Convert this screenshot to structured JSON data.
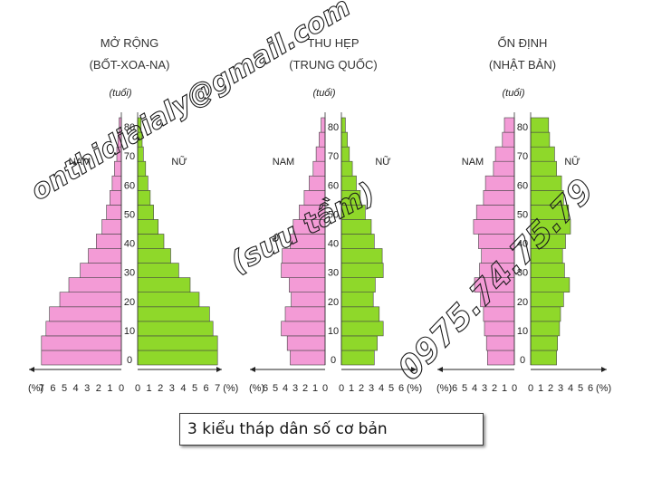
{
  "colors": {
    "male": "#f39bd6",
    "female": "#8fd82a",
    "edge": "#444444"
  },
  "chart_data": [
    {
      "type": "bar",
      "title": "MỞ RỘNG",
      "subtitle": "(BỐT-XOA-NA)",
      "age_unit": "(tuổi)",
      "male_label": "NAM",
      "female_label": "NỮ",
      "percent_label": "(%)",
      "age_ticks": [
        "0",
        "10",
        "20",
        "30",
        "40",
        "50",
        "60",
        "70",
        "80"
      ],
      "x_ticks_left": [
        "7",
        "6",
        "5",
        "4",
        "3",
        "2",
        "1",
        "0"
      ],
      "x_ticks_right": [
        "0",
        "1",
        "2",
        "3",
        "4",
        "5",
        "6",
        "7"
      ],
      "xlim": [
        0,
        7
      ],
      "male": [
        7.0,
        7.0,
        6.6,
        6.3,
        5.4,
        4.6,
        3.6,
        2.9,
        2.2,
        1.7,
        1.3,
        1.0,
        0.8,
        0.6,
        0.4,
        0.3,
        0.2
      ],
      "female": [
        7.0,
        7.0,
        6.6,
        6.3,
        5.4,
        4.6,
        3.6,
        2.9,
        2.3,
        1.8,
        1.4,
        1.1,
        0.9,
        0.7,
        0.5,
        0.4,
        0.3
      ]
    },
    {
      "type": "bar",
      "title": "THU HẸP",
      "subtitle": "(TRUNG QUỐC)",
      "age_unit": "(tuổi)",
      "male_label": "NAM",
      "female_label": "NỮ",
      "percent_label": "(%)",
      "age_ticks": [
        "0",
        "10",
        "20",
        "30",
        "40",
        "50",
        "60",
        "70",
        "80"
      ],
      "x_ticks_left": [
        "6",
        "5",
        "4",
        "3",
        "2",
        "1",
        "0"
      ],
      "x_ticks_right": [
        "0",
        "1",
        "2",
        "3",
        "4",
        "5",
        "6"
      ],
      "xlim": [
        0,
        6
      ],
      "male": [
        3.5,
        3.8,
        4.4,
        4.0,
        3.4,
        3.6,
        4.4,
        4.3,
        3.5,
        3.2,
        2.6,
        2.1,
        1.6,
        1.2,
        0.9,
        0.6,
        0.4
      ],
      "female": [
        3.3,
        3.6,
        4.2,
        3.8,
        3.2,
        3.4,
        4.2,
        4.1,
        3.3,
        3.0,
        2.4,
        1.9,
        1.5,
        1.1,
        0.8,
        0.6,
        0.4
      ]
    },
    {
      "type": "bar",
      "title": "ỔN ĐỊNH",
      "subtitle": "(NHẬT BẢN)",
      "age_unit": "(tuổi)",
      "male_label": "NAM",
      "female_label": "NỮ",
      "percent_label": "(%)",
      "age_ticks": [
        "0",
        "10",
        "20",
        "30",
        "40",
        "50",
        "60",
        "70",
        "80"
      ],
      "x_ticks_left": [
        "6",
        "5",
        "4",
        "3",
        "2",
        "1",
        "0"
      ],
      "x_ticks_right": [
        "0",
        "1",
        "2",
        "3",
        "4",
        "5",
        "6"
      ],
      "xlim": [
        0,
        6
      ],
      "male": [
        2.7,
        2.8,
        3.0,
        3.1,
        3.4,
        4.0,
        3.5,
        3.3,
        3.6,
        4.1,
        3.8,
        3.1,
        2.9,
        2.1,
        1.9,
        1.2,
        1.0
      ],
      "female": [
        2.6,
        2.7,
        2.9,
        3.0,
        3.3,
        3.9,
        3.4,
        3.2,
        3.5,
        4.0,
        3.8,
        3.3,
        3.1,
        2.6,
        2.4,
        1.9,
        1.8
      ]
    }
  ],
  "watermarks": {
    "email": "onthidiaialy@gmail.com",
    "collected": "(sưu tầm)",
    "phone": "0975.74.75.79"
  },
  "caption": "3 kiểu tháp dân số cơ bản"
}
